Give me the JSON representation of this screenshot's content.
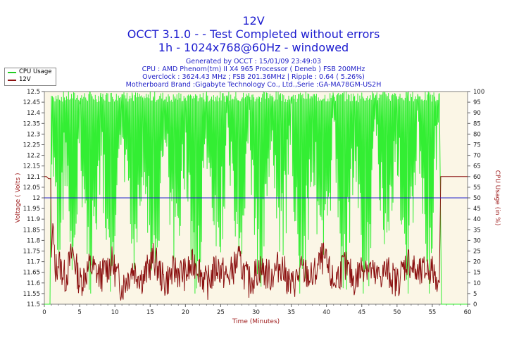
{
  "header": {
    "title": "12V",
    "subtitle": "OCCT 3.1.0 -  - Test Completed without errors",
    "config": "1h - 1024x768@60Hz - windowed",
    "generated": "Generated by OCCT : 15/01/09 23:49:03",
    "cpu": "CPU : AMD Phenom(tm) II X4 965 Processor ( Deneb ) FSB 200MHz",
    "overclock": "Overclock : 3624.43 MHz ; FSB 201.36MHz | Ripple : 0.64 ( 5.26%)",
    "motherboard": "Motherboard Brand :Gigabyte Technology Co., Ltd.,Serie :GA-MA78GM-US2H"
  },
  "legend": [
    {
      "label": "CPU Usage",
      "color": "#22cc22"
    },
    {
      "label": "12V",
      "color": "#8b1010"
    }
  ],
  "colors": {
    "cpu": "#33ee33",
    "voltage": "#8b1010",
    "ref_line": "#2222cc",
    "plot_bg": "#fbf6e6",
    "left_axis_text": "#a02020",
    "right_axis_text": "#a02020"
  },
  "chart_data": {
    "type": "line",
    "title": "12V",
    "xlabel": "Time (Minutes)",
    "ylabel": "Voltage ( Volts )",
    "y2label": "CPU Usage (in %)",
    "xlim": [
      0,
      60
    ],
    "ylim": [
      11.5,
      12.5
    ],
    "y2lim": [
      0,
      100
    ],
    "x_ticks": [
      0,
      5,
      10,
      15,
      20,
      25,
      30,
      35,
      40,
      45,
      50,
      55,
      60
    ],
    "y_ticks": [
      "11.5",
      "11.55",
      "11.6",
      "11.65",
      "11.7",
      "11.75",
      "11.8",
      "11.85",
      "11.9",
      "11.95",
      "12",
      "12.05",
      "12.1",
      "12.15",
      "12.2",
      "12.25",
      "12.3",
      "12.35",
      "12.4",
      "12.45",
      "12.5"
    ],
    "y2_ticks": [
      "0",
      "5",
      "10",
      "15",
      "20",
      "25",
      "30",
      "35",
      "40",
      "45",
      "50",
      "55",
      "60",
      "65",
      "70",
      "75",
      "80",
      "85",
      "90",
      "95",
      "100"
    ],
    "reference_line": 12.0,
    "series": [
      {
        "name": "CPU Usage",
        "axis": "right",
        "x": [
          0,
          0.4,
          0.8,
          1.0,
          1.2,
          1.5,
          2.0,
          3.0,
          4.0,
          5.0,
          6.5,
          8.0,
          9.5,
          11.0,
          12.5,
          14.0,
          15.5,
          17.0,
          18.5,
          20.0,
          21.5,
          23.0,
          24.5,
          26.0,
          27.5,
          29.0,
          30.5,
          32.0,
          33.5,
          35.0,
          36.5,
          38.0,
          39.5,
          41.0,
          42.5,
          44.0,
          45.5,
          47.0,
          48.5,
          50.0,
          51.5,
          53.0,
          54.5,
          55.5,
          56.0,
          56.3,
          57,
          58,
          59,
          60
        ],
        "values": [
          0,
          0,
          0,
          98,
          60,
          99,
          40,
          98,
          25,
          99,
          35,
          97,
          20,
          99,
          45,
          98,
          30,
          99,
          50,
          97,
          25,
          99,
          40,
          98,
          35,
          99,
          30,
          98,
          45,
          99,
          25,
          97,
          40,
          99,
          30,
          98,
          20,
          99,
          45,
          97,
          35,
          99,
          25,
          98,
          99,
          0,
          0,
          0,
          0,
          0
        ]
      },
      {
        "name": "12V",
        "axis": "left",
        "x": [
          0,
          0.3,
          0.6,
          0.9,
          1.0,
          1.2,
          1.5,
          2.0,
          3.0,
          4.0,
          5.0,
          6.5,
          8.0,
          9.5,
          11.0,
          12.5,
          14.0,
          15.5,
          17.0,
          18.5,
          20.0,
          21.5,
          23.0,
          24.5,
          26.0,
          27.5,
          29.0,
          30.5,
          32.0,
          33.5,
          35.0,
          36.5,
          38.0,
          39.5,
          41.0,
          42.5,
          44.0,
          45.5,
          47.0,
          48.5,
          50.0,
          51.5,
          53.0,
          54.5,
          55.5,
          56.0,
          56.2,
          57,
          58,
          59,
          60
        ],
        "values": [
          12.1,
          12.1,
          12.09,
          12.09,
          11.72,
          11.88,
          11.66,
          11.7,
          11.62,
          11.75,
          11.6,
          11.68,
          11.63,
          11.7,
          11.58,
          11.67,
          11.62,
          11.72,
          11.6,
          11.66,
          11.64,
          11.7,
          11.59,
          11.68,
          11.62,
          11.71,
          11.6,
          11.67,
          11.63,
          11.69,
          11.58,
          11.66,
          11.62,
          11.72,
          11.6,
          11.68,
          11.61,
          11.7,
          11.62,
          11.66,
          11.6,
          11.71,
          11.63,
          11.67,
          11.64,
          11.6,
          12.1,
          12.1,
          12.1,
          12.1,
          12.1
        ]
      }
    ]
  }
}
